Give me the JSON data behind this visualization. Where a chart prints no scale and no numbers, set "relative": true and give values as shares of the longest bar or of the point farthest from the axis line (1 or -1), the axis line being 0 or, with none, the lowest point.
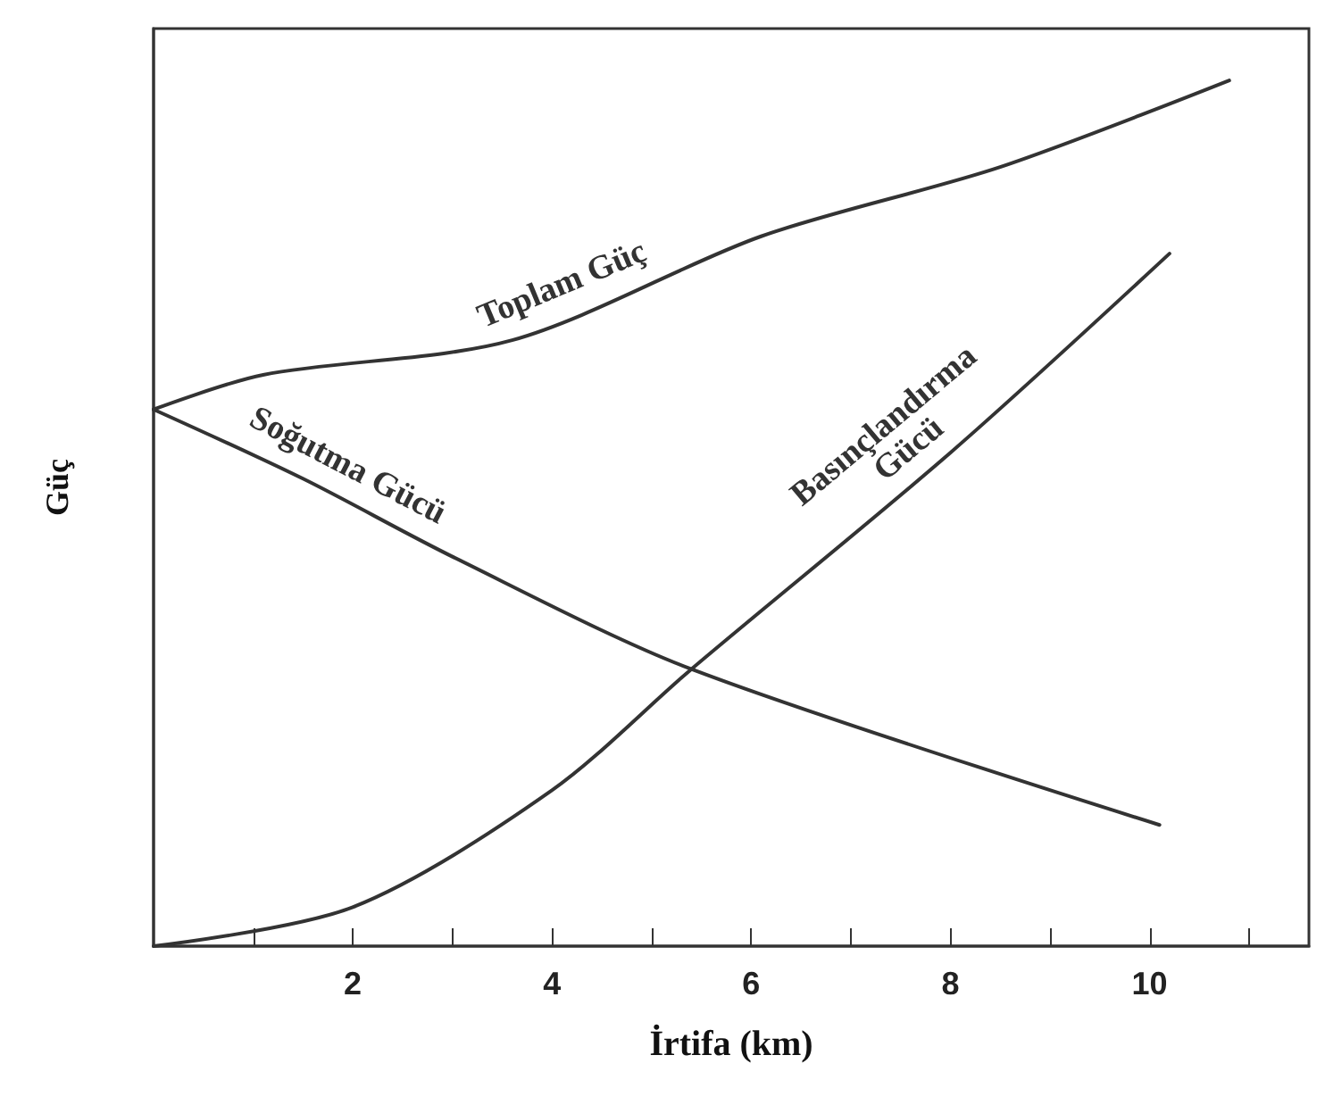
{
  "chart_data": {
    "type": "line",
    "xlabel": "İrtifa (km)",
    "ylabel": "Güç",
    "relative": true,
    "legend": false,
    "grid": false,
    "marker": "none",
    "line_style": "solid",
    "xlim": [
      0,
      11.6
    ],
    "xticks": [
      {
        "value": 1,
        "label": null
      },
      2,
      {
        "value": 3,
        "label": null
      },
      4,
      {
        "value": 5,
        "label": null
      },
      6,
      {
        "value": 7,
        "label": null
      },
      8,
      {
        "value": 9,
        "label": null
      },
      10,
      {
        "value": 11,
        "label": null
      }
    ],
    "series": [
      {
        "name": "Toplam Güç",
        "color": "#333333",
        "x": [
          0,
          1.1,
          3.6,
          6.1,
          8.5,
          10.8
        ],
        "values": [
          0.62,
          0.66,
          0.7,
          0.82,
          0.9,
          1
        ]
      },
      {
        "name": "Soğutma Gücü",
        "color": "#333333",
        "x": [
          0,
          1.5,
          3,
          5.4,
          10.1
        ],
        "values": [
          0.62,
          0.54,
          0.45,
          0.32,
          0.14
        ]
      },
      {
        "name": "Basınçlandırma Gücü",
        "color": "#333333",
        "x": [
          0,
          2,
          4,
          5.4,
          8,
          10.2
        ],
        "values": [
          0,
          0.045,
          0.18,
          0.32,
          0.57,
          0.8
        ]
      }
    ]
  }
}
